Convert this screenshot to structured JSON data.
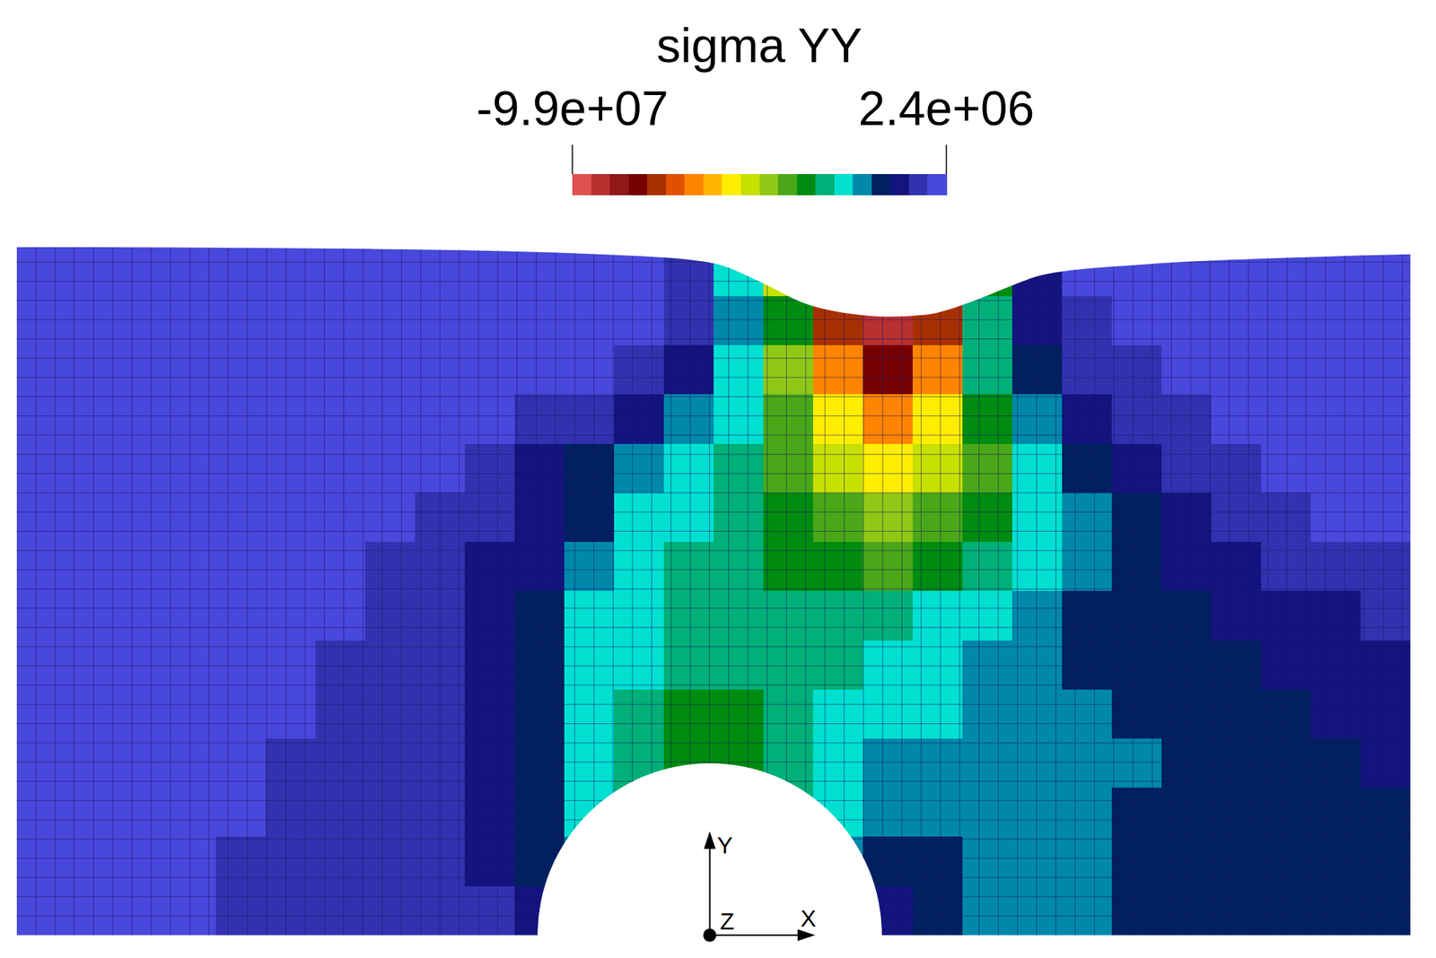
{
  "chart_data": {
    "type": "heatmap",
    "title": "sigma YY",
    "field": {
      "values": [
        [
          0,
          0,
          0,
          0,
          0,
          0,
          0,
          0,
          0,
          0,
          0,
          0,
          0,
          -5000000.0,
          -25000000.0,
          -51000000.0,
          -81000000.0,
          -96000000.0,
          -81000000.0,
          -36000000.0,
          -10000000.0,
          0,
          0,
          0,
          0,
          0,
          0,
          0
        ],
        [
          0,
          0,
          0,
          0,
          0,
          0,
          0,
          0,
          0,
          0,
          0,
          0,
          0,
          -5000000.0,
          -20000000.0,
          -36000000.0,
          -76000000.0,
          -91000000.0,
          -76000000.0,
          -30500000.0,
          -10000000.0,
          -5000000.0,
          0,
          0,
          0,
          0,
          0,
          0
        ],
        [
          0,
          0,
          0,
          0,
          0,
          0,
          0,
          0,
          0,
          0,
          0,
          0,
          -5000000.0,
          -10000000.0,
          -25000000.0,
          -46000000.0,
          -66000000.0,
          -81000000.0,
          -66000000.0,
          -30500000.0,
          -15000000.0,
          -5000000.0,
          -5000000.0,
          0,
          0,
          0,
          0,
          0
        ],
        [
          0,
          0,
          0,
          0,
          0,
          0,
          0,
          0,
          0,
          0,
          -5000000.0,
          -5000000.0,
          -10000000.0,
          -20000000.0,
          -25000000.0,
          -41000000.0,
          -56000000.0,
          -66000000.0,
          -56000000.0,
          -36000000.0,
          -20000000.0,
          -10000000.0,
          -5000000.0,
          -5000000.0,
          0,
          0,
          0,
          0
        ],
        [
          0,
          0,
          0,
          0,
          0,
          0,
          0,
          0,
          0,
          -5000000.0,
          -10000000.0,
          -15000000.0,
          -20000000.0,
          -25000000.0,
          -30500000.0,
          -41000000.0,
          -51000000.0,
          -56000000.0,
          -51000000.0,
          -41000000.0,
          -25000000.0,
          -15000000.0,
          -10000000.0,
          -5000000.0,
          -5000000.0,
          0,
          0,
          0
        ],
        [
          0,
          0,
          0,
          0,
          0,
          0,
          0,
          0,
          -5000000.0,
          -5000000.0,
          -10000000.0,
          -15000000.0,
          -25000000.0,
          -25000000.0,
          -30500000.0,
          -36000000.0,
          -41000000.0,
          -46000000.0,
          -41000000.0,
          -36000000.0,
          -25000000.0,
          -20000000.0,
          -15000000.0,
          -10000000.0,
          -5000000.0,
          -5000000.0,
          0,
          0
        ],
        [
          0,
          0,
          0,
          0,
          0,
          0,
          0,
          -5000000.0,
          -5000000.0,
          -10000000.0,
          -10000000.0,
          -20000000.0,
          -25000000.0,
          -30500000.0,
          -30500000.0,
          -36000000.0,
          -36000000.0,
          -41000000.0,
          -36000000.0,
          -30500000.0,
          -25000000.0,
          -20000000.0,
          -15000000.0,
          -10000000.0,
          -10000000.0,
          -5000000.0,
          -5000000.0,
          -5000000.0
        ],
        [
          0,
          0,
          0,
          0,
          0,
          0,
          0,
          -5000000.0,
          -5000000.0,
          -10000000.0,
          -15000000.0,
          -25000000.0,
          -25000000.0,
          -30500000.0,
          -30500000.0,
          -30500000.0,
          -30500000.0,
          -30500000.0,
          -25000000.0,
          -25000000.0,
          -20000000.0,
          -15000000.0,
          -15000000.0,
          -15000000.0,
          -10000000.0,
          -10000000.0,
          -10000000.0,
          -5000000.0
        ],
        [
          0,
          0,
          0,
          0,
          0,
          0,
          -5000000.0,
          -5000000.0,
          -5000000.0,
          -10000000.0,
          -15000000.0,
          -25000000.0,
          -25000000.0,
          -30500000.0,
          -30500000.0,
          -30500000.0,
          -30500000.0,
          -25000000.0,
          -25000000.0,
          -20000000.0,
          -20000000.0,
          -15000000.0,
          -15000000.0,
          -15000000.0,
          -15000000.0,
          -10000000.0,
          -10000000.0,
          -10000000.0
        ],
        [
          0,
          0,
          0,
          0,
          0,
          0,
          -5000000.0,
          -5000000.0,
          -5000000.0,
          -10000000.0,
          -15000000.0,
          -25000000.0,
          -30500000.0,
          -36000000.0,
          -36000000.0,
          -30500000.0,
          -25000000.0,
          -25000000.0,
          -25000000.0,
          -20000000.0,
          -20000000.0,
          -20000000.0,
          -15000000.0,
          -15000000.0,
          -15000000.0,
          -15000000.0,
          -10000000.0,
          -10000000.0
        ],
        [
          0,
          0,
          0,
          0,
          0,
          -5000000.0,
          -5000000.0,
          -5000000.0,
          -5000000.0,
          -10000000.0,
          -15000000.0,
          -25000000.0,
          -30500000.0,
          -36000000.0,
          -36000000.0,
          -30500000.0,
          -25000000.0,
          -20000000.0,
          -20000000.0,
          -20000000.0,
          -20000000.0,
          -20000000.0,
          -20000000.0,
          -15000000.0,
          -15000000.0,
          -15000000.0,
          -15000000.0,
          -10000000.0
        ],
        [
          0,
          0,
          0,
          0,
          0,
          -5000000.0,
          -5000000.0,
          -5000000.0,
          -5000000.0,
          -10000000.0,
          -15000000.0,
          -25000000.0,
          -30500000.0,
          null,
          null,
          -30500000.0,
          -25000000.0,
          -20000000.0,
          -20000000.0,
          -20000000.0,
          -20000000.0,
          -20000000.0,
          -15000000.0,
          -15000000.0,
          -15000000.0,
          -15000000.0,
          -15000000.0,
          -15000000.0
        ],
        [
          0,
          0,
          0,
          0,
          -5000000.0,
          -5000000.0,
          -5000000.0,
          -5000000.0,
          -5000000.0,
          -10000000.0,
          -15000000.0,
          -20000000.0,
          null,
          null,
          null,
          null,
          -20000000.0,
          -15000000.0,
          -15000000.0,
          -20000000.0,
          -20000000.0,
          -20000000.0,
          -15000000.0,
          -15000000.0,
          -15000000.0,
          -15000000.0,
          -15000000.0,
          -15000000.0
        ],
        [
          0,
          0,
          0,
          0,
          -5000000.0,
          -5000000.0,
          -5000000.0,
          -5000000.0,
          -5000000.0,
          -5000000.0,
          -10000000.0,
          null,
          null,
          null,
          null,
          null,
          null,
          -10000000.0,
          -15000000.0,
          -20000000.0,
          -20000000.0,
          -20000000.0,
          -15000000.0,
          -15000000.0,
          -15000000.0,
          -15000000.0,
          -15000000.0,
          -15000000.0
        ]
      ]
    },
    "colorbar": {
      "range": [
        -99000000.0,
        2400000.0
      ],
      "ticks": [
        {
          "value": -99000000.0,
          "label": "-9.9e+07"
        },
        {
          "value": 2400000.0,
          "label": "2.4e+06"
        }
      ],
      "colors": [
        "#e05050",
        "#b83030",
        "#901818",
        "#760000",
        "#a83000",
        "#e05000",
        "#ff8400",
        "#ffb400",
        "#ffee00",
        "#c8e000",
        "#90c818",
        "#4aa818",
        "#008c10",
        "#00b078",
        "#00e0d0",
        "#0088aa",
        "#002060",
        "#14147e",
        "#3232b0",
        "#4848dc"
      ]
    },
    "axes_triad": {
      "x": "X",
      "y": "Y",
      "z": "Z"
    }
  }
}
